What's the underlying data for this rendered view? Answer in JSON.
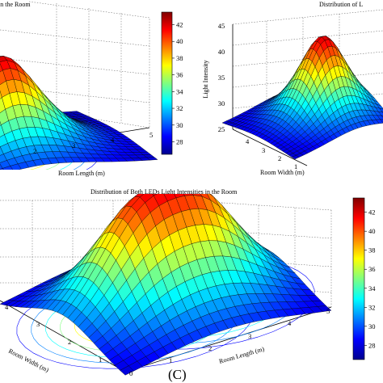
{
  "chart_data": [
    {
      "panel": "a",
      "type": "surface",
      "title": "in the Room",
      "xlabel": "Room Length (m)",
      "ylabel": "",
      "zlabel": "",
      "x_ticks": [
        "2",
        "3",
        "4",
        "5"
      ],
      "y_ticks": [],
      "z_ticks": [],
      "colorbar": {
        "ticks": [
          "28",
          "30",
          "32",
          "34",
          "36",
          "38",
          "40",
          "42"
        ],
        "range": [
          26.5,
          43.5
        ]
      },
      "z_range": [
        26,
        44
      ],
      "leds": [
        [
          1.8,
          2.5
        ]
      ],
      "grid": true
    },
    {
      "panel": "b",
      "type": "surface",
      "title": "Distribution of L",
      "xlabel": "Room Width (m)",
      "ylabel": "",
      "zlabel": "Light Intensity",
      "x_ticks": [
        "1",
        "2",
        "3",
        "4"
      ],
      "y_ticks": [],
      "z_ticks": [
        "25",
        "30",
        "35",
        "40",
        "45"
      ],
      "z_range": [
        25,
        45
      ],
      "leds": [
        [
          3.2,
          2.5
        ]
      ],
      "grid": true
    },
    {
      "panel": "c",
      "type": "surface",
      "title": "Distribution of Both LEDs Light Intensities in the Room",
      "xlabel": "Room Length (m)",
      "ylabel": "Room Width (m)",
      "zlabel": "",
      "x_ticks": [
        "0",
        "1",
        "2",
        "3",
        "4",
        "5"
      ],
      "y_ticks": [
        "1",
        "2",
        "3",
        "4"
      ],
      "colorbar": {
        "ticks": [
          "28",
          "30",
          "32",
          "34",
          "36",
          "38",
          "40",
          "42"
        ],
        "range": [
          26.5,
          43.5
        ]
      },
      "z_range": [
        26,
        44
      ],
      "leds": [
        [
          1.75,
          2.5
        ],
        [
          3.25,
          2.5
        ]
      ],
      "caption": "(C)",
      "grid": true
    }
  ]
}
